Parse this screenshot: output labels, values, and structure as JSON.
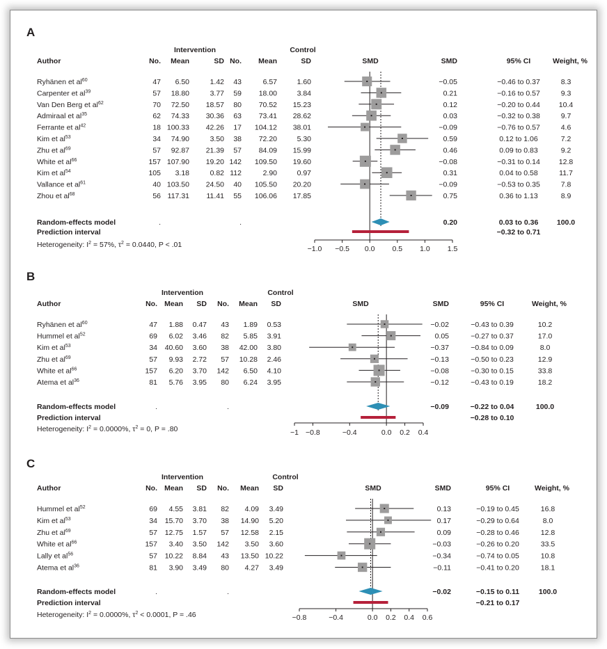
{
  "chart_data": [
    {
      "type": "forest",
      "panel_label": "A",
      "headers": {
        "author": "Author",
        "intervention": "Intervention",
        "control": "Control",
        "n": "No.",
        "mean": "Mean",
        "sd": "SD",
        "smd_plot": "SMD",
        "smd": "SMD",
        "ci": "95% CI",
        "weight": "Weight, %"
      },
      "studies": [
        {
          "author": "Ryhänen et al",
          "ref": "60",
          "i_n": "47",
          "i_mean": "6.50",
          "i_sd": "1.42",
          "c_n": "43",
          "c_mean": "6.57",
          "c_sd": "1.60",
          "smd": -0.05,
          "lo": -0.46,
          "hi": 0.37,
          "smd_text": "−0.05",
          "ci_text": "−0.46 to 0.37",
          "weight": "8.3"
        },
        {
          "author": "Carpenter et al",
          "ref": "39",
          "i_n": "57",
          "i_mean": "18.80",
          "i_sd": "3.77",
          "c_n": "59",
          "c_mean": "18.00",
          "c_sd": "3.84",
          "smd": 0.21,
          "lo": -0.16,
          "hi": 0.57,
          "smd_text": "0.21",
          "ci_text": "−0.16 to 0.57",
          "weight": "9.3"
        },
        {
          "author": "Van Den Berg et al",
          "ref": "62",
          "i_n": "70",
          "i_mean": "72.50",
          "i_sd": "18.57",
          "c_n": "80",
          "c_mean": "70.52",
          "c_sd": "15.23",
          "smd": 0.12,
          "lo": -0.2,
          "hi": 0.44,
          "smd_text": "0.12",
          "ci_text": "−0.20 to 0.44",
          "weight": "10.4"
        },
        {
          "author": "Admiraal et al",
          "ref": "35",
          "i_n": "62",
          "i_mean": "74.33",
          "i_sd": "30.36",
          "c_n": "63",
          "c_mean": "73.41",
          "c_sd": "28.62",
          "smd": 0.03,
          "lo": -0.32,
          "hi": 0.38,
          "smd_text": "0.03",
          "ci_text": "−0.32 to 0.38",
          "weight": "9.7"
        },
        {
          "author": "Ferrante et al",
          "ref": "42",
          "i_n": "18",
          "i_mean": "100.33",
          "i_sd": "42.26",
          "c_n": "17",
          "c_mean": "104.12",
          "c_sd": "38.01",
          "smd": -0.09,
          "lo": -0.76,
          "hi": 0.57,
          "smd_text": "−0.09",
          "ci_text": "−0.76 to 0.57",
          "weight": "4.6"
        },
        {
          "author": "Kim et al",
          "ref": "53",
          "i_n": "34",
          "i_mean": "74.90",
          "i_sd": "3.50",
          "c_n": "38",
          "c_mean": "72.20",
          "c_sd": "5.30",
          "smd": 0.59,
          "lo": 0.12,
          "hi": 1.06,
          "smd_text": "0.59",
          "ci_text": "0.12 to 1.06",
          "weight": "7.2"
        },
        {
          "author": "Zhu et al",
          "ref": "69",
          "i_n": "57",
          "i_mean": "92.87",
          "i_sd": "21.39",
          "c_n": "57",
          "c_mean": "84.09",
          "c_sd": "15.99",
          "smd": 0.46,
          "lo": 0.09,
          "hi": 0.83,
          "smd_text": "0.46",
          "ci_text": "0.09 to 0.83",
          "weight": "9.2"
        },
        {
          "author": "White et al",
          "ref": "66",
          "i_n": "157",
          "i_mean": "107.90",
          "i_sd": "19.20",
          "c_n": "142",
          "c_mean": "109.50",
          "c_sd": "19.60",
          "smd": -0.08,
          "lo": -0.31,
          "hi": 0.14,
          "smd_text": "−0.08",
          "ci_text": "−0.31 to 0.14",
          "weight": "12.8"
        },
        {
          "author": "Kim et al",
          "ref": "54",
          "i_n": "105",
          "i_mean": "3.18",
          "i_sd": "0.82",
          "c_n": "112",
          "c_mean": "2.90",
          "c_sd": "0.97",
          "smd": 0.31,
          "lo": 0.04,
          "hi": 0.58,
          "smd_text": "0.31",
          "ci_text": "0.04 to 0.58",
          "weight": "11.7"
        },
        {
          "author": "Vallance et al",
          "ref": "61",
          "i_n": "40",
          "i_mean": "103.50",
          "i_sd": "24.50",
          "c_n": "40",
          "c_mean": "105.50",
          "c_sd": "20.20",
          "smd": -0.09,
          "lo": -0.53,
          "hi": 0.35,
          "smd_text": "−0.09",
          "ci_text": "−0.53 to 0.35",
          "weight": "7.8"
        },
        {
          "author": "Zhou et al",
          "ref": "68",
          "i_n": "56",
          "i_mean": "117.31",
          "i_sd": "11.41",
          "c_n": "55",
          "c_mean": "106.06",
          "c_sd": "17.85",
          "smd": 0.75,
          "lo": 0.36,
          "hi": 1.13,
          "smd_text": "0.75",
          "ci_text": "0.36 to 1.13",
          "weight": "8.9"
        }
      ],
      "pooled": {
        "label": "Random-effects model",
        "dot_i": ".",
        "dot_c": ".",
        "smd": 0.2,
        "lo": 0.03,
        "hi": 0.36,
        "smd_text": "0.20",
        "ci_text": "0.03 to 0.36",
        "weight": "100.0"
      },
      "prediction": {
        "label": "Prediction interval",
        "lo": -0.32,
        "hi": 0.71,
        "ci_text": "−0.32 to 0.71"
      },
      "heterogeneity": "Heterogeneity: I² = 57%, τ² = 0.0440, P < .01",
      "x_ticks": [
        {
          "v": -1.0,
          "t": "−1.0"
        },
        {
          "v": -0.5,
          "t": "−0.5"
        },
        {
          "v": 0.0,
          "t": "0.0"
        },
        {
          "v": 0.5,
          "t": "0.5"
        },
        {
          "v": 1.0,
          "t": "1.0"
        },
        {
          "v": 1.5,
          "t": "1.5"
        }
      ],
      "xlim": [
        -1.0,
        1.5
      ]
    },
    {
      "type": "forest",
      "panel_label": "B",
      "headers": {
        "author": "Author",
        "intervention": "Intervention",
        "control": "Control",
        "n": "No.",
        "mean": "Mean",
        "sd": "SD",
        "smd_plot": "SMD",
        "smd": "SMD",
        "ci": "95% CI",
        "weight": "Weight, %"
      },
      "studies": [
        {
          "author": "Ryhänen et al",
          "ref": "60",
          "i_n": "47",
          "i_mean": "1.88",
          "i_sd": "0.47",
          "c_n": "43",
          "c_mean": "1.89",
          "c_sd": "0.53",
          "smd": -0.02,
          "lo": -0.43,
          "hi": 0.39,
          "smd_text": "−0.02",
          "ci_text": "−0.43 to 0.39",
          "weight": "10.2"
        },
        {
          "author": "Hummel et al",
          "ref": "52",
          "i_n": "69",
          "i_mean": "6.02",
          "i_sd": "3.46",
          "c_n": "82",
          "c_mean": "5.85",
          "c_sd": "3.91",
          "smd": 0.05,
          "lo": -0.27,
          "hi": 0.37,
          "smd_text": "0.05",
          "ci_text": "−0.27 to 0.37",
          "weight": "17.0"
        },
        {
          "author": "Kim et al",
          "ref": "53",
          "i_n": "34",
          "i_mean": "40.60",
          "i_sd": "3.60",
          "c_n": "38",
          "c_mean": "42.00",
          "c_sd": "3.80",
          "smd": -0.37,
          "lo": -0.84,
          "hi": 0.09,
          "smd_text": "−0.37",
          "ci_text": "−0.84 to 0.09",
          "weight": "8.0"
        },
        {
          "author": "Zhu et al",
          "ref": "69",
          "i_n": "57",
          "i_mean": "9.93",
          "i_sd": "2.72",
          "c_n": "57",
          "c_mean": "10.28",
          "c_sd": "2.46",
          "smd": -0.13,
          "lo": -0.5,
          "hi": 0.23,
          "smd_text": "−0.13",
          "ci_text": "−0.50 to 0.23",
          "weight": "12.9"
        },
        {
          "author": "White et al",
          "ref": "66",
          "i_n": "157",
          "i_mean": "6.20",
          "i_sd": "3.70",
          "c_n": "142",
          "c_mean": "6.50",
          "c_sd": "4.10",
          "smd": -0.08,
          "lo": -0.3,
          "hi": 0.15,
          "smd_text": "−0.08",
          "ci_text": "−0.30 to 0.15",
          "weight": "33.8"
        },
        {
          "author": "Atema et al",
          "ref": "36",
          "i_n": "81",
          "i_mean": "5.76",
          "i_sd": "3.95",
          "c_n": "80",
          "c_mean": "6.24",
          "c_sd": "3.95",
          "smd": -0.12,
          "lo": -0.43,
          "hi": 0.19,
          "smd_text": "−0.12",
          "ci_text": "−0.43 to 0.19",
          "weight": "18.2"
        }
      ],
      "pooled": {
        "label": "Random-effects model",
        "dot_i": ".",
        "dot_c": ".",
        "smd": -0.09,
        "lo": -0.22,
        "hi": 0.04,
        "smd_text": "−0.09",
        "ci_text": "−0.22 to 0.04",
        "weight": "100.0"
      },
      "prediction": {
        "label": "Prediction interval",
        "lo": -0.28,
        "hi": 0.1,
        "ci_text": "−0.28 to 0.10"
      },
      "heterogeneity": "Heterogeneity: I² = 0.0000%, τ² = 0, P = .80",
      "x_ticks": [
        {
          "v": -1,
          "t": "−1"
        },
        {
          "v": -0.8,
          "t": "−0.8"
        },
        {
          "v": -0.4,
          "t": "−0.4"
        },
        {
          "v": 0,
          "t": "0.0"
        },
        {
          "v": 0.2,
          "t": "0.2"
        },
        {
          "v": 0.4,
          "t": "0.4"
        }
      ],
      "xlim": [
        -1,
        0.4
      ]
    },
    {
      "type": "forest",
      "panel_label": "C",
      "headers": {
        "author": "Author",
        "intervention": "Intervention",
        "control": "Control",
        "n": "No.",
        "mean": "Mean",
        "sd": "SD",
        "smd_plot": "SMD",
        "smd": "SMD",
        "ci": "95% CI",
        "weight": "Weight, %"
      },
      "studies": [
        {
          "author": "Hummel et al",
          "ref": "52",
          "i_n": "69",
          "i_mean": "4.55",
          "i_sd": "3.81",
          "c_n": "82",
          "c_mean": "4.09",
          "c_sd": "3.49",
          "smd": 0.13,
          "lo": -0.19,
          "hi": 0.45,
          "smd_text": "0.13",
          "ci_text": "−0.19 to 0.45",
          "weight": "16.8"
        },
        {
          "author": "Kim et al",
          "ref": "53",
          "i_n": "34",
          "i_mean": "15.70",
          "i_sd": "3.70",
          "c_n": "38",
          "c_mean": "14.90",
          "c_sd": "5.20",
          "smd": 0.17,
          "lo": -0.29,
          "hi": 0.64,
          "smd_text": "0.17",
          "ci_text": "−0.29 to 0.64",
          "weight": "8.0"
        },
        {
          "author": "Zhu et al",
          "ref": "69",
          "i_n": "57",
          "i_mean": "12.75",
          "i_sd": "1.57",
          "c_n": "57",
          "c_mean": "12.58",
          "c_sd": "2.15",
          "smd": 0.09,
          "lo": -0.28,
          "hi": 0.46,
          "smd_text": "0.09",
          "ci_text": "−0.28 to 0.46",
          "weight": "12.8"
        },
        {
          "author": "White et al",
          "ref": "66",
          "i_n": "157",
          "i_mean": "3.40",
          "i_sd": "3.50",
          "c_n": "142",
          "c_mean": "3.50",
          "c_sd": "3.60",
          "smd": -0.03,
          "lo": -0.26,
          "hi": 0.2,
          "smd_text": "−0.03",
          "ci_text": "−0.26 to 0.20",
          "weight": "33.5"
        },
        {
          "author": "Lally et al",
          "ref": "56",
          "i_n": "57",
          "i_mean": "10.22",
          "i_sd": "8.84",
          "c_n": "43",
          "c_mean": "13.50",
          "c_sd": "10.22",
          "smd": -0.34,
          "lo": -0.74,
          "hi": 0.05,
          "smd_text": "−0.34",
          "ci_text": "−0.74 to 0.05",
          "weight": "10.8"
        },
        {
          "author": "Atema et al",
          "ref": "36",
          "i_n": "81",
          "i_mean": "3.90",
          "i_sd": "3.49",
          "c_n": "80",
          "c_mean": "4.27",
          "c_sd": "3.49",
          "smd": -0.11,
          "lo": -0.41,
          "hi": 0.2,
          "smd_text": "−0.11",
          "ci_text": "−0.41 to 0.20",
          "weight": "18.1"
        }
      ],
      "pooled": {
        "label": "Random-effects model",
        "dot_i": ".",
        "dot_c": ".",
        "smd": -0.02,
        "lo": -0.15,
        "hi": 0.11,
        "smd_text": "−0.02",
        "ci_text": "−0.15 to 0.11",
        "weight": "100.0"
      },
      "prediction": {
        "label": "Prediction interval",
        "lo": -0.21,
        "hi": 0.17,
        "ci_text": "−0.21 to 0.17"
      },
      "heterogeneity": "Heterogeneity: I² = 0.0000%, τ² < 0.0001, P = .46",
      "x_ticks": [
        {
          "v": -0.8,
          "t": "−0.8"
        },
        {
          "v": -0.4,
          "t": "−0.4"
        },
        {
          "v": 0,
          "t": "0.0"
        },
        {
          "v": 0.2,
          "t": "0.2"
        },
        {
          "v": 0.4,
          "t": "0.4"
        },
        {
          "v": 0.6,
          "t": "0.6"
        }
      ],
      "xlim": [
        -0.8,
        0.6
      ]
    }
  ],
  "colors": {
    "square": "#9d9c9c",
    "ci_line": "#231f20",
    "diamond": "#2d8fb5",
    "prediction": "#b5203a",
    "text": "#231f20"
  }
}
